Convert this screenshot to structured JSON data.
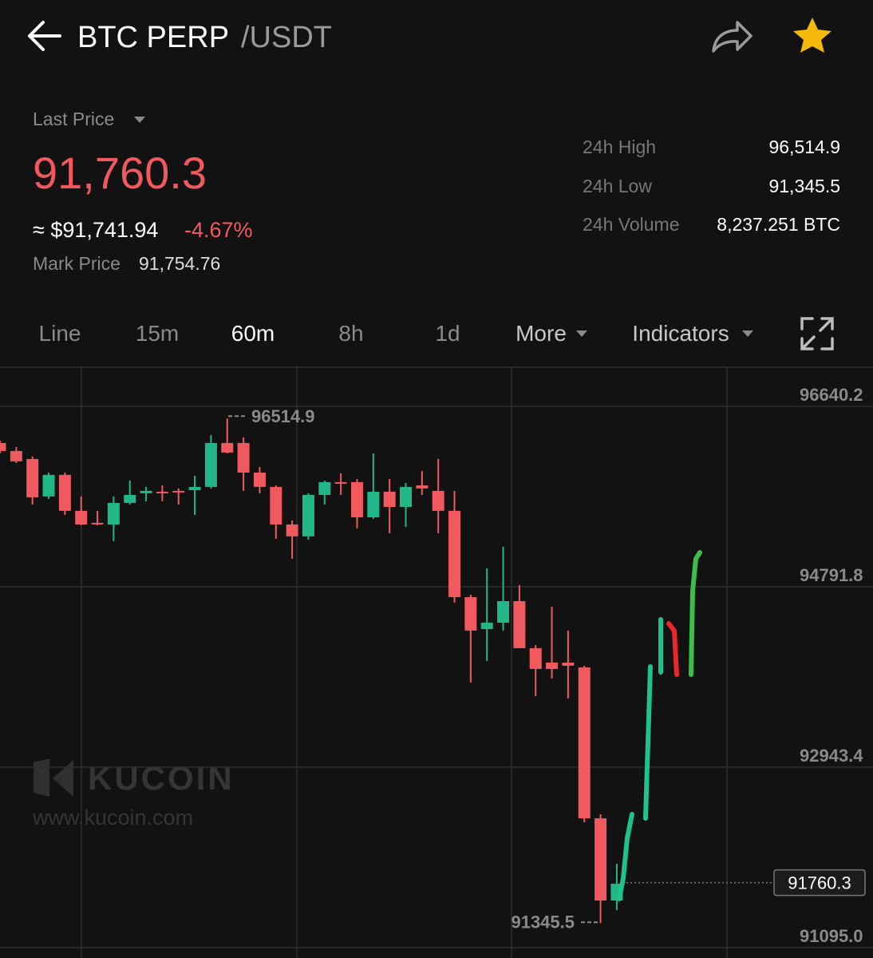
{
  "header": {
    "symbol": "BTC PERP",
    "quote": "/USDT"
  },
  "price": {
    "label": "Last Price",
    "last": "91,760.3",
    "usd": "≈ $91,741.94",
    "change": "-4.67%",
    "mark_label": "Mark Price",
    "mark": "91,754.76"
  },
  "stats": [
    {
      "label": "24h High",
      "value": "96,514.9"
    },
    {
      "label": "24h Low",
      "value": "91,345.5"
    },
    {
      "label": "24h Volume",
      "value": "8,237.251 BTC"
    }
  ],
  "tabs": [
    "Line",
    "15m",
    "60m",
    "8h",
    "1d",
    "More",
    "Indicators"
  ],
  "active_tab_index": 2,
  "watermark": {
    "brand": "KUCOIN",
    "url": "www.kucoin.com"
  },
  "chart_data": {
    "type": "candlestick",
    "open": [
      96264,
      96182,
      96100,
      95716,
      95937,
      95569,
      95446,
      95429,
      95650,
      95749,
      95765,
      95773,
      95781,
      95814,
      96264,
      96264,
      95961,
      95814,
      95429,
      95307,
      95732,
      95863,
      95863,
      95503,
      95765,
      95609,
      95830,
      95773,
      95569,
      94685,
      94358,
      94423,
      94644,
      94162,
      94014,
      94014,
      93965,
      92419,
      91577
    ],
    "high": [
      96288,
      96223,
      96125,
      95961,
      95961,
      95716,
      95569,
      95716,
      95879,
      95814,
      95830,
      95798,
      95928,
      96346,
      96514.9,
      96321,
      96018,
      95830,
      95470,
      95749,
      95879,
      95953,
      95896,
      96158,
      95896,
      95855,
      95978,
      96100,
      95773,
      94710,
      94980,
      95201,
      94808,
      94194,
      94587,
      94342,
      93982,
      92460,
      91953
    ],
    "low": [
      96158,
      96059,
      95634,
      95691,
      95528,
      95421,
      95421,
      95258,
      95634,
      95667,
      95667,
      95634,
      95528,
      95798,
      96158,
      95773,
      95749,
      95282,
      95078,
      95274,
      95634,
      95732,
      95389,
      95487,
      95340,
      95405,
      95732,
      95340,
      94628,
      93810,
      94031,
      94342,
      94162,
      93671,
      93851,
      93647,
      92378,
      91345.5,
      91478
    ],
    "close": [
      96182,
      96076,
      95708,
      95937,
      95569,
      95429,
      95438,
      95650,
      95732,
      95773,
      95757,
      95757,
      95814,
      96264,
      96166,
      95961,
      95814,
      95429,
      95307,
      95732,
      95863,
      95855,
      95503,
      95765,
      95609,
      95814,
      95798,
      95569,
      94685,
      94342,
      94423,
      94644,
      94162,
      93949,
      93949,
      93982,
      92419,
      91577,
      91749
    ],
    "up_color": "#22b788",
    "down_color": "#f05a5f",
    "ylim": [
      90988,
      97040
    ],
    "yticks": [
      96640.2,
      94791.8,
      92943.4,
      {
        "value": 91095,
        "label": "91095.0"
      }
    ],
    "grid": true,
    "high_marker": 96514.9,
    "low_marker": 91345.5,
    "last_price": 91760.3
  }
}
